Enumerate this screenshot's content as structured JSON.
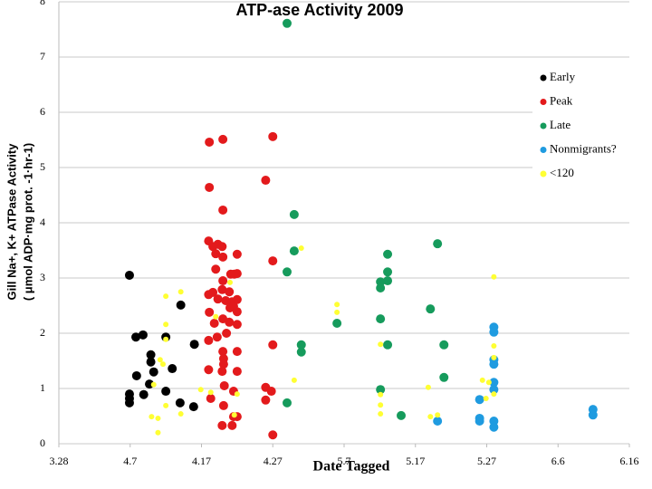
{
  "chart_data": {
    "type": "scatter",
    "title": "ATP-ase Activity 2009",
    "x_label": "Date Tagged",
    "y_label_lines": [
      "Gill Na+, K+ ATPase Activity",
      "( μmol ADP·mg prot. -1·hr-1)"
    ],
    "xlim": [
      87,
      167
    ],
    "xticks": [
      {
        "value": 87,
        "label": "3.28"
      },
      {
        "value": 97,
        "label": "4.7"
      },
      {
        "value": 107,
        "label": "4.17"
      },
      {
        "value": 117,
        "label": "4.27"
      },
      {
        "value": 127,
        "label": "5.7"
      },
      {
        "value": 137,
        "label": "5.17"
      },
      {
        "value": 147,
        "label": "5.27"
      },
      {
        "value": 157,
        "label": "6.6"
      },
      {
        "value": 167,
        "label": "6.16"
      }
    ],
    "ylim": [
      0,
      8
    ],
    "yticks": [
      0,
      1,
      2,
      3,
      4,
      5,
      6,
      7,
      8
    ],
    "grid": true,
    "legend": "upper right",
    "series": [
      {
        "name": "Early",
        "color": "#000000",
        "x": [
          96.9,
          96.9,
          96.9,
          96.9,
          97.8,
          98.8,
          97.9,
          98.9,
          99.7,
          99.9,
          99.9,
          100.3,
          102.0,
          102.0,
          102.9,
          104.0,
          104.1,
          105.9,
          106.0
        ],
        "values": [
          3.05,
          0.9,
          0.82,
          0.74,
          1.93,
          1.97,
          1.23,
          0.89,
          1.08,
          1.61,
          1.48,
          1.3,
          1.93,
          0.95,
          1.36,
          0.74,
          2.51,
          0.67,
          1.8
        ]
      },
      {
        "name": "Peak",
        "color": "#e31a1c",
        "x": [
          108.1,
          110.0,
          117.0,
          108.1,
          110.0,
          116.0,
          108.0,
          108.6,
          109.3,
          109.9,
          109.0,
          110.0,
          112.0,
          117.0,
          109.0,
          111.1,
          111.6,
          112.0,
          110.0,
          108.6,
          109.9,
          110.9,
          108.0,
          109.3,
          110.4,
          111.3,
          112.0,
          111.0,
          111.5,
          112.0,
          108.1,
          108.8,
          110.0,
          110.9,
          112.0,
          108.0,
          109.2,
          110.5,
          112.0,
          110.0,
          110.1,
          110.1,
          108.0,
          109.9,
          112.0,
          110.2,
          111.5,
          108.3,
          110.1,
          109.9,
          111.3,
          112.0,
          111.5,
          116.0,
          116.8,
          116.0,
          117.0,
          117.0
        ],
        "values": [
          5.46,
          5.51,
          5.56,
          4.64,
          4.23,
          4.77,
          3.67,
          3.57,
          3.61,
          3.57,
          3.44,
          3.38,
          3.43,
          3.31,
          3.16,
          3.07,
          3.07,
          3.08,
          2.95,
          2.74,
          2.79,
          2.75,
          2.7,
          2.62,
          2.59,
          2.57,
          2.61,
          2.46,
          2.49,
          2.39,
          2.38,
          2.18,
          2.26,
          2.2,
          2.16,
          1.87,
          1.93,
          2.0,
          1.67,
          1.67,
          1.54,
          1.44,
          1.34,
          1.31,
          1.31,
          1.05,
          0.95,
          0.82,
          0.69,
          0.33,
          0.33,
          0.49,
          0.49,
          1.02,
          0.95,
          0.79,
          1.79,
          0.16
        ]
      },
      {
        "name": "Late",
        "color": "#169b5c",
        "x": [
          119.0,
          120.0,
          120.0,
          119.0,
          121.0,
          121.0,
          119.0,
          126.0,
          132.1,
          133.1,
          133.1,
          133.1,
          132.1,
          132.1,
          133.1,
          132.1,
          135.0,
          140.1,
          139.1,
          141.0,
          141.0
        ],
        "values": [
          7.61,
          4.15,
          3.49,
          3.11,
          1.79,
          1.66,
          0.74,
          2.18,
          2.93,
          3.43,
          3.11,
          2.95,
          2.82,
          2.26,
          1.79,
          0.98,
          0.51,
          3.62,
          2.44,
          1.79,
          1.2
        ]
      },
      {
        "name": "Nonmigrants?",
        "color": "#1f9be0",
        "x": [
          140.1,
          146.0,
          146.0,
          146.0,
          148.0,
          148.0,
          148.0,
          148.0,
          148.0,
          148.0,
          148.0,
          148.0,
          161.9,
          161.9
        ],
        "values": [
          0.41,
          0.8,
          0.46,
          0.41,
          2.11,
          2.02,
          1.52,
          1.44,
          1.11,
          0.98,
          0.41,
          0.3,
          0.62,
          0.52
        ]
      },
      {
        "name": "<120",
        "color": "#ffff33",
        "x": [
          148.0,
          148.0,
          148.0,
          148.0,
          147.3,
          146.9,
          146.4,
          138.8,
          139.1,
          140.1,
          132.1,
          132.1,
          132.1,
          132.1,
          126.0,
          126.0,
          121.0,
          120.0,
          111.6,
          112.0,
          111.0,
          109.0,
          108.3,
          106.9,
          104.1,
          104.1,
          102.0,
          102.0,
          102.0,
          102.0,
          101.2,
          101.6,
          100.9,
          100.0,
          100.9,
          100.3
        ],
        "values": [
          3.02,
          1.77,
          1.56,
          0.9,
          1.11,
          0.82,
          1.15,
          1.02,
          0.49,
          0.52,
          1.8,
          0.89,
          0.7,
          0.54,
          2.52,
          2.38,
          3.54,
          1.15,
          0.52,
          0.9,
          2.92,
          2.3,
          0.93,
          0.98,
          2.75,
          0.54,
          2.67,
          2.16,
          1.89,
          0.69,
          1.52,
          1.44,
          0.46,
          0.49,
          0.2,
          1.07
        ]
      }
    ]
  }
}
